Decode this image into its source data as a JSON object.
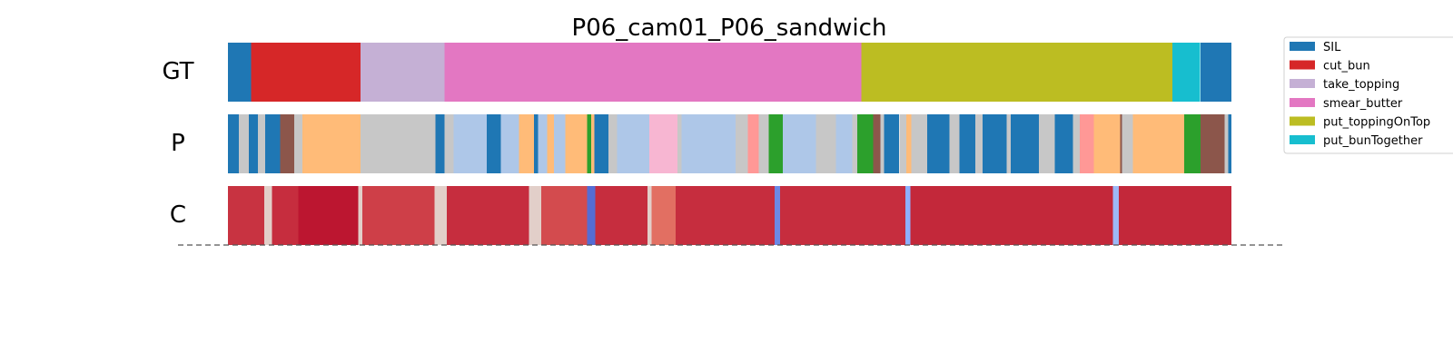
{
  "chart_data": {
    "type": "segmentation_timeline",
    "title": "P06_cam01_P06_sandwich",
    "rows": [
      "GT",
      "P",
      "C"
    ],
    "colors": {
      "SIL": "#1f77b4",
      "cut_bun": "#d62728",
      "take_topping": "#c5b0d5",
      "smear_butter": "#e377c2",
      "put_toppingOnTop": "#bcbd22",
      "put_bunTogether": "#17becf",
      "p_light_blue": "#aec7e8",
      "p_orange": "#ffbb78",
      "p_gray": "#c7c7c7",
      "p_brown": "#8c564b",
      "p_pink": "#f7b6d2",
      "p_salmon": "#ff9896",
      "p_green": "#2ca02c",
      "p_dark_gray": "#7f7f7f"
    },
    "legend": [
      {
        "label": "SIL",
        "color": "#1f77b4"
      },
      {
        "label": "cut_bun",
        "color": "#d62728"
      },
      {
        "label": "take_topping",
        "color": "#c5b0d5"
      },
      {
        "label": "smear_butter",
        "color": "#e377c2"
      },
      {
        "label": "put_toppingOnTop",
        "color": "#bcbd22"
      },
      {
        "label": "put_bunTogether",
        "color": "#17becf"
      }
    ],
    "gt_segments": [
      {
        "start": 0.0,
        "end": 2.3,
        "class": "SIL"
      },
      {
        "start": 2.3,
        "end": 13.2,
        "class": "cut_bun"
      },
      {
        "start": 13.2,
        "end": 21.6,
        "class": "take_topping"
      },
      {
        "start": 21.6,
        "end": 63.1,
        "class": "smear_butter"
      },
      {
        "start": 63.1,
        "end": 94.1,
        "class": "put_toppingOnTop"
      },
      {
        "start": 94.1,
        "end": 96.9,
        "class": "put_bunTogether"
      },
      {
        "start": 96.9,
        "end": 100.0,
        "class": "SIL"
      }
    ],
    "p_segments": [
      {
        "start": 0.0,
        "end": 1.1,
        "class": "SIL"
      },
      {
        "start": 1.1,
        "end": 2.1,
        "class": "p_gray"
      },
      {
        "start": 2.1,
        "end": 3.0,
        "class": "SIL"
      },
      {
        "start": 3.0,
        "end": 3.7,
        "class": "p_gray"
      },
      {
        "start": 3.7,
        "end": 5.2,
        "class": "SIL"
      },
      {
        "start": 5.2,
        "end": 6.6,
        "class": "p_brown"
      },
      {
        "start": 6.6,
        "end": 7.4,
        "class": "p_gray"
      },
      {
        "start": 7.4,
        "end": 13.2,
        "class": "p_orange"
      },
      {
        "start": 13.2,
        "end": 20.7,
        "class": "p_gray"
      },
      {
        "start": 20.7,
        "end": 21.6,
        "class": "SIL"
      },
      {
        "start": 21.6,
        "end": 22.5,
        "class": "p_gray"
      },
      {
        "start": 22.5,
        "end": 25.8,
        "class": "p_light_blue"
      },
      {
        "start": 25.8,
        "end": 27.2,
        "class": "SIL"
      },
      {
        "start": 27.2,
        "end": 29.0,
        "class": "p_light_blue"
      },
      {
        "start": 29.0,
        "end": 30.5,
        "class": "p_orange"
      },
      {
        "start": 30.5,
        "end": 30.9,
        "class": "SIL"
      },
      {
        "start": 30.9,
        "end": 31.8,
        "class": "p_light_blue"
      },
      {
        "start": 31.8,
        "end": 32.5,
        "class": "p_orange"
      },
      {
        "start": 32.5,
        "end": 33.6,
        "class": "p_light_blue"
      },
      {
        "start": 33.6,
        "end": 35.8,
        "class": "p_orange"
      },
      {
        "start": 35.8,
        "end": 36.2,
        "class": "p_green"
      },
      {
        "start": 36.2,
        "end": 36.5,
        "class": "p_orange"
      },
      {
        "start": 36.5,
        "end": 37.9,
        "class": "SIL"
      },
      {
        "start": 37.9,
        "end": 38.8,
        "class": "p_gray"
      },
      {
        "start": 38.8,
        "end": 42.0,
        "class": "p_light_blue"
      },
      {
        "start": 42.0,
        "end": 44.8,
        "class": "p_pink"
      },
      {
        "start": 44.8,
        "end": 45.2,
        "class": "p_gray"
      },
      {
        "start": 45.2,
        "end": 50.6,
        "class": "p_light_blue"
      },
      {
        "start": 50.6,
        "end": 51.8,
        "class": "p_gray"
      },
      {
        "start": 51.8,
        "end": 52.9,
        "class": "p_salmon"
      },
      {
        "start": 52.9,
        "end": 53.9,
        "class": "p_gray"
      },
      {
        "start": 53.9,
        "end": 55.3,
        "class": "p_green"
      },
      {
        "start": 55.3,
        "end": 58.6,
        "class": "p_light_blue"
      },
      {
        "start": 58.6,
        "end": 60.6,
        "class": "p_gray"
      },
      {
        "start": 60.6,
        "end": 62.2,
        "class": "p_light_blue"
      },
      {
        "start": 62.2,
        "end": 62.7,
        "class": "p_gray"
      },
      {
        "start": 62.7,
        "end": 64.3,
        "class": "p_green"
      },
      {
        "start": 64.3,
        "end": 65.0,
        "class": "p_brown"
      },
      {
        "start": 65.0,
        "end": 65.4,
        "class": "p_gray"
      },
      {
        "start": 65.4,
        "end": 66.9,
        "class": "SIL"
      },
      {
        "start": 66.9,
        "end": 67.6,
        "class": "p_gray"
      },
      {
        "start": 67.6,
        "end": 68.1,
        "class": "p_orange"
      },
      {
        "start": 68.1,
        "end": 69.7,
        "class": "p_gray"
      },
      {
        "start": 69.7,
        "end": 71.9,
        "class": "SIL"
      },
      {
        "start": 71.9,
        "end": 72.9,
        "class": "p_gray"
      },
      {
        "start": 72.9,
        "end": 74.5,
        "class": "SIL"
      },
      {
        "start": 74.5,
        "end": 75.2,
        "class": "p_gray"
      },
      {
        "start": 75.2,
        "end": 77.6,
        "class": "SIL"
      },
      {
        "start": 77.6,
        "end": 78.0,
        "class": "p_gray"
      },
      {
        "start": 78.0,
        "end": 80.8,
        "class": "SIL"
      },
      {
        "start": 80.8,
        "end": 82.4,
        "class": "p_gray"
      },
      {
        "start": 82.4,
        "end": 84.2,
        "class": "SIL"
      },
      {
        "start": 84.2,
        "end": 84.9,
        "class": "p_gray"
      },
      {
        "start": 84.9,
        "end": 86.3,
        "class": "p_salmon"
      },
      {
        "start": 86.3,
        "end": 88.9,
        "class": "p_orange"
      },
      {
        "start": 88.9,
        "end": 89.1,
        "class": "p_brown"
      },
      {
        "start": 89.1,
        "end": 90.2,
        "class": "p_gray"
      },
      {
        "start": 90.2,
        "end": 95.3,
        "class": "p_orange"
      },
      {
        "start": 95.3,
        "end": 96.9,
        "class": "p_green"
      },
      {
        "start": 96.9,
        "end": 99.3,
        "class": "p_brown"
      },
      {
        "start": 99.3,
        "end": 99.7,
        "class": "p_gray"
      },
      {
        "start": 99.7,
        "end": 100.0,
        "class": "SIL"
      }
    ],
    "c_segments": [
      {
        "start": 0.0,
        "end": 3.6,
        "value": 0.92
      },
      {
        "start": 3.6,
        "end": 4.4,
        "value": 0.55
      },
      {
        "start": 4.4,
        "end": 7.0,
        "value": 0.93
      },
      {
        "start": 7.0,
        "end": 13.0,
        "value": 0.97
      },
      {
        "start": 13.0,
        "end": 13.4,
        "value": 0.55
      },
      {
        "start": 13.4,
        "end": 20.6,
        "value": 0.9
      },
      {
        "start": 20.6,
        "end": 21.8,
        "value": 0.55
      },
      {
        "start": 21.8,
        "end": 30.0,
        "value": 0.93
      },
      {
        "start": 30.0,
        "end": 31.2,
        "value": 0.55
      },
      {
        "start": 31.2,
        "end": 35.8,
        "value": 0.88
      },
      {
        "start": 35.8,
        "end": 36.6,
        "value": 0.08
      },
      {
        "start": 36.6,
        "end": 41.8,
        "value": 0.93
      },
      {
        "start": 41.8,
        "end": 42.2,
        "value": 0.55
      },
      {
        "start": 42.2,
        "end": 44.6,
        "value": 0.82
      },
      {
        "start": 44.6,
        "end": 54.5,
        "value": 0.93
      },
      {
        "start": 54.5,
        "end": 55.0,
        "value": 0.15
      },
      {
        "start": 55.0,
        "end": 67.5,
        "value": 0.93
      },
      {
        "start": 67.5,
        "end": 68.0,
        "value": 0.25
      },
      {
        "start": 68.0,
        "end": 88.2,
        "value": 0.94
      },
      {
        "start": 88.2,
        "end": 88.8,
        "value": 0.3
      },
      {
        "start": 88.8,
        "end": 100.0,
        "value": 0.94
      }
    ],
    "x_range": [
      0,
      100
    ]
  }
}
